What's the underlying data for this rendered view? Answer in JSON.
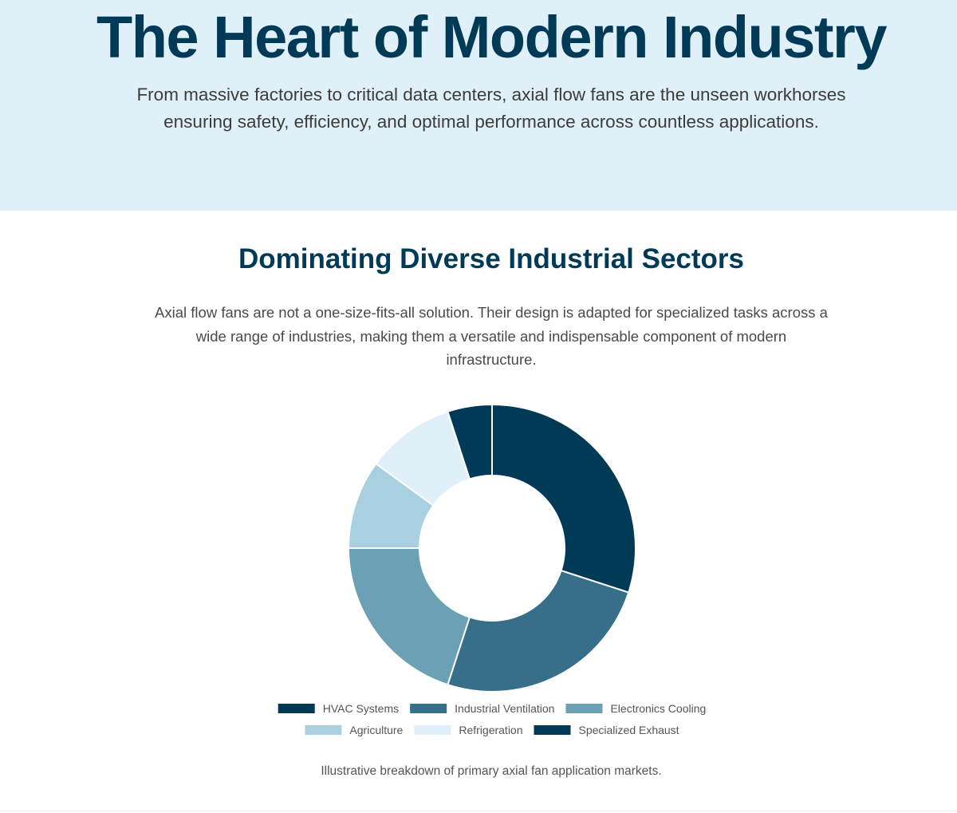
{
  "hero": {
    "title": "The Heart of Modern Industry",
    "subtitle": "From massive factories to critical data centers, axial flow fans are the unseen workhorses ensuring safety, efficiency, and optimal performance across countless applications."
  },
  "section": {
    "title": "Dominating Diverse Industrial Sectors",
    "description": "Axial flow fans are not a one-size-fits-all solution. Their design is adapted for specialized tasks across a wide range of industries, making them a versatile and indispensable component of modern infrastructure.",
    "caption": "Illustrative breakdown of primary axial fan application markets."
  },
  "colors": {
    "hero_background": "#dff0f8",
    "heading": "#003a57"
  },
  "chart_data": {
    "type": "pie",
    "variant": "doughnut",
    "title": "",
    "categories": [
      "HVAC Systems",
      "Industrial Ventilation",
      "Electronics Cooling",
      "Agriculture",
      "Refrigeration",
      "Specialized Exhaust"
    ],
    "values": [
      30,
      25,
      20,
      10,
      10,
      5
    ],
    "colors": [
      "#003a57",
      "#376e8a",
      "#6ba0b5",
      "#a8d0e0",
      "#dff0f8",
      "#003a57"
    ],
    "legend_position": "bottom"
  }
}
